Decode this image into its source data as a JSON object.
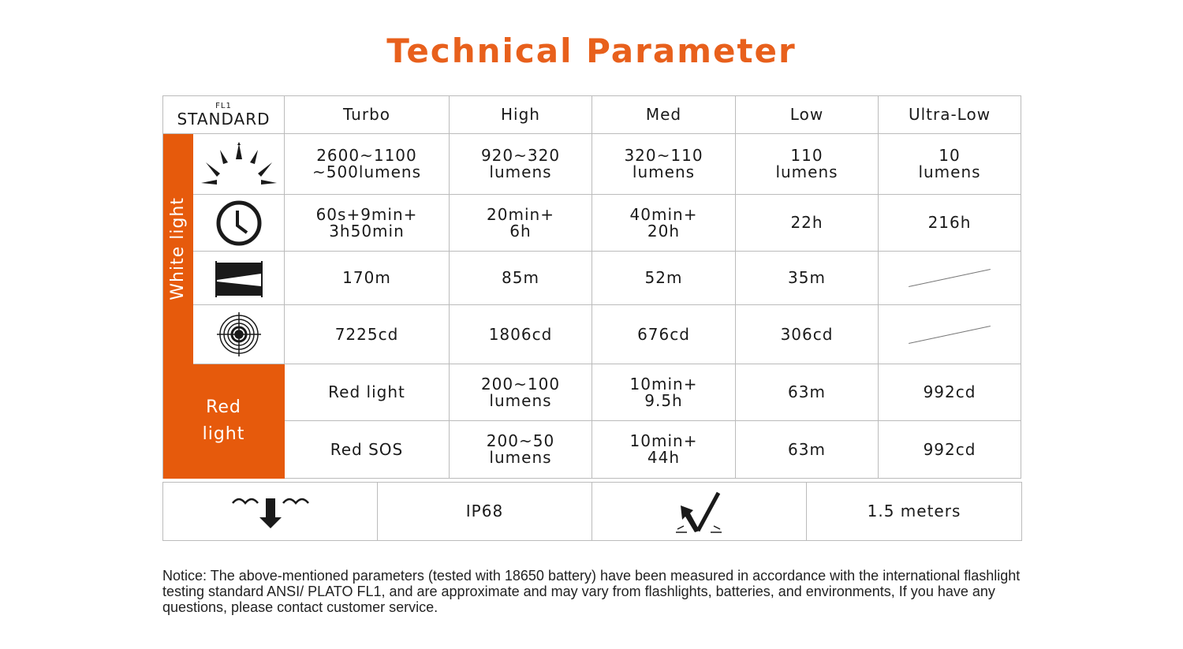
{
  "title": "Technical Parameter",
  "header": {
    "standard_small": "FL1",
    "standard": "STANDARD",
    "modes": [
      "Turbo",
      "High",
      "Med",
      "Low",
      "Ultra-Low"
    ]
  },
  "white_light": {
    "label": "White light",
    "rows": [
      {
        "icon": "brightness-icon",
        "values": [
          "2600~1100\n~500lumens",
          "920~320\nlumens",
          "320~110\nlumens",
          "110\nlumens",
          "10\nlumens"
        ]
      },
      {
        "icon": "clock-icon",
        "values": [
          "60s+9min+\n3h50min",
          "20min+\n6h",
          "40min+\n20h",
          "22h",
          "216h"
        ]
      },
      {
        "icon": "beam-distance-icon",
        "values": [
          "170m",
          "85m",
          "52m",
          "35m",
          ""
        ]
      },
      {
        "icon": "target-intensity-icon",
        "values": [
          "7225cd",
          "1806cd",
          "676cd",
          "306cd",
          ""
        ]
      }
    ]
  },
  "red_light": {
    "label": "Red\nlight",
    "rows": [
      [
        "Red light",
        "200~100\nlumens",
        "10min+\n9.5h",
        "63m",
        "992cd"
      ],
      [
        "Red SOS",
        "200~50\nlumens",
        "10min+\n44h",
        "63m",
        "992cd"
      ]
    ]
  },
  "bottom": {
    "waterproof": "IP68",
    "impact": "1.5 meters"
  },
  "notice": "Notice: The above-mentioned parameters (tested with 18650 battery)  have been measured in accordance with the international flashlight testing standard ANSI/ PLATO FL1, and are approximate and may vary from flashlights, batteries, and environments, If you have any questions, please contact customer service.",
  "colors": {
    "accent": "#e65a0c"
  }
}
